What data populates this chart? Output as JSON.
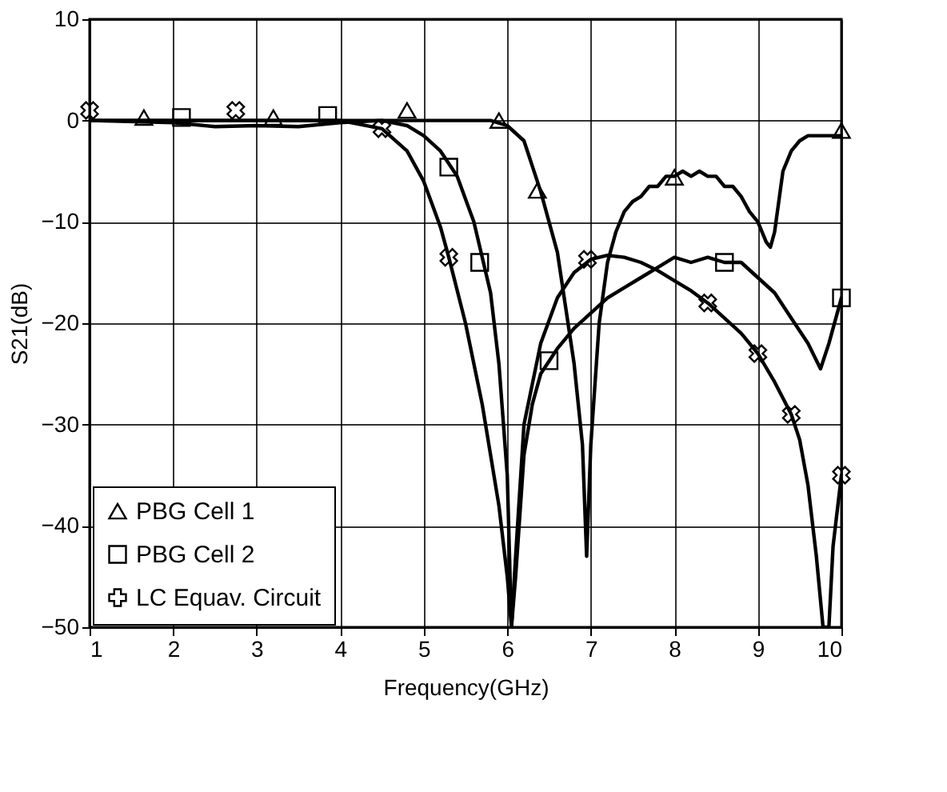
{
  "chart_data": {
    "type": "line",
    "xlabel": "Frequency(GHz)",
    "ylabel": "S21(dB)",
    "xlim": [
      1,
      10
    ],
    "xticks": [
      1,
      2,
      3,
      4,
      5,
      6,
      7,
      8,
      9,
      10
    ],
    "ylim": [
      -50,
      10
    ],
    "yticks": [
      -50,
      -40,
      -30,
      -20,
      -10,
      0,
      10
    ],
    "grid": true,
    "legend": "bottom left",
    "line_style": "solid",
    "series": [
      {
        "name": "PBG Cell 1",
        "color": "#000000",
        "x": [
          1,
          1.5,
          2,
          2.5,
          3,
          3.5,
          4,
          4.5,
          5,
          5.3,
          5.6,
          5.8,
          6.0,
          6.2,
          6.4,
          6.6,
          6.8,
          6.9,
          6.95,
          7.0,
          7.1,
          7.2,
          7.3,
          7.4,
          7.5,
          7.6,
          7.7,
          7.8,
          7.9,
          8.0,
          8.1,
          8.2,
          8.3,
          8.4,
          8.5,
          8.6,
          8.7,
          8.8,
          8.9,
          9.0,
          9.1,
          9.15,
          9.2,
          9.3,
          9.4,
          9.5,
          9.6,
          9.8,
          10
        ],
        "values": [
          0,
          0,
          0,
          0,
          0,
          0,
          0,
          0,
          0,
          0,
          0,
          0,
          -0.5,
          -2,
          -7,
          -13,
          -24,
          -32,
          -43,
          -32,
          -20,
          -14,
          -11,
          -9,
          -8,
          -7.5,
          -6.5,
          -6.5,
          -5.5,
          -5.5,
          -5,
          -5.5,
          -5,
          -5.5,
          -5.5,
          -6.5,
          -6.5,
          -7.5,
          -9,
          -10,
          -12,
          -12.5,
          -11,
          -5,
          -3,
          -2,
          -1.5,
          -1.5,
          -1.5
        ]
      },
      {
        "type": "scatter",
        "marker": "triangle",
        "color": "#000000",
        "x": [
          1.65,
          3.2,
          4.8,
          5.9,
          6.36,
          8.0,
          10.0
        ],
        "values": [
          0.3,
          0.3,
          1,
          0,
          -6.9,
          -5.6,
          -1
        ]
      },
      {
        "name": "PBG Cell 2",
        "color": "#000000",
        "x": [
          1,
          2,
          2.5,
          3,
          3.5,
          4,
          4.5,
          4.8,
          5.0,
          5.2,
          5.4,
          5.6,
          5.8,
          5.9,
          6.0,
          6.05,
          6.1,
          6.2,
          6.3,
          6.4,
          6.6,
          6.8,
          7.0,
          7.2,
          7.4,
          7.6,
          7.8,
          8.0,
          8.2,
          8.4,
          8.6,
          8.8,
          9.0,
          9.2,
          9.4,
          9.6,
          9.75,
          9.85,
          9.95,
          10
        ],
        "values": [
          0,
          -0.2,
          -0.6,
          -0.5,
          -0.6,
          -0.2,
          0,
          -0.5,
          -1.5,
          -3,
          -5.5,
          -10,
          -17,
          -24,
          -35,
          -50,
          -45,
          -33,
          -28,
          -25,
          -22.5,
          -20.5,
          -19,
          -17.5,
          -16.5,
          -15.5,
          -14.5,
          -13.5,
          -14,
          -13.5,
          -14,
          -14,
          -15.5,
          -17,
          -19.5,
          -22,
          -24.5,
          -22,
          -19,
          -17.5
        ]
      },
      {
        "type": "scatter",
        "marker": "square",
        "color": "#000000",
        "x": [
          2.1,
          3.85,
          5.3,
          5.67,
          6.5,
          8.6,
          10.0
        ],
        "values": [
          0.3,
          0.5,
          -4.6,
          -14,
          -23.7,
          -14,
          -17.5
        ]
      },
      {
        "name": "LC Equav. Circuit",
        "color": "#000000",
        "x": [
          1,
          2,
          3,
          4,
          4.5,
          4.8,
          5.0,
          5.2,
          5.3,
          5.5,
          5.7,
          5.9,
          6.0,
          6.05,
          6.1,
          6.2,
          6.4,
          6.6,
          6.8,
          7.0,
          7.2,
          7.4,
          7.6,
          7.8,
          8.0,
          8.2,
          8.4,
          8.6,
          8.8,
          9.0,
          9.2,
          9.4,
          9.5,
          9.6,
          9.7,
          9.78,
          9.85,
          9.9,
          10
        ],
        "values": [
          0,
          0,
          0,
          0,
          -0.8,
          -3,
          -6,
          -10.5,
          -13.5,
          -20,
          -28,
          -38,
          -45,
          -50,
          -43,
          -30,
          -22,
          -17.5,
          -15,
          -13.7,
          -13.3,
          -13.5,
          -14,
          -14.8,
          -15.8,
          -16.8,
          -18,
          -19.5,
          -21,
          -23,
          -25.8,
          -29,
          -31.5,
          -36,
          -43,
          -50,
          -50,
          -42,
          -35
        ]
      },
      {
        "type": "scatter",
        "marker": "cross",
        "color": "#000000",
        "x": [
          1.0,
          2.75,
          4.5,
          5.3,
          6.96,
          8.4,
          9.0,
          9.4,
          10.0
        ],
        "values": [
          1,
          1,
          -0.8,
          -13.5,
          -13.7,
          -18,
          -23,
          -29,
          -35
        ]
      }
    ]
  }
}
